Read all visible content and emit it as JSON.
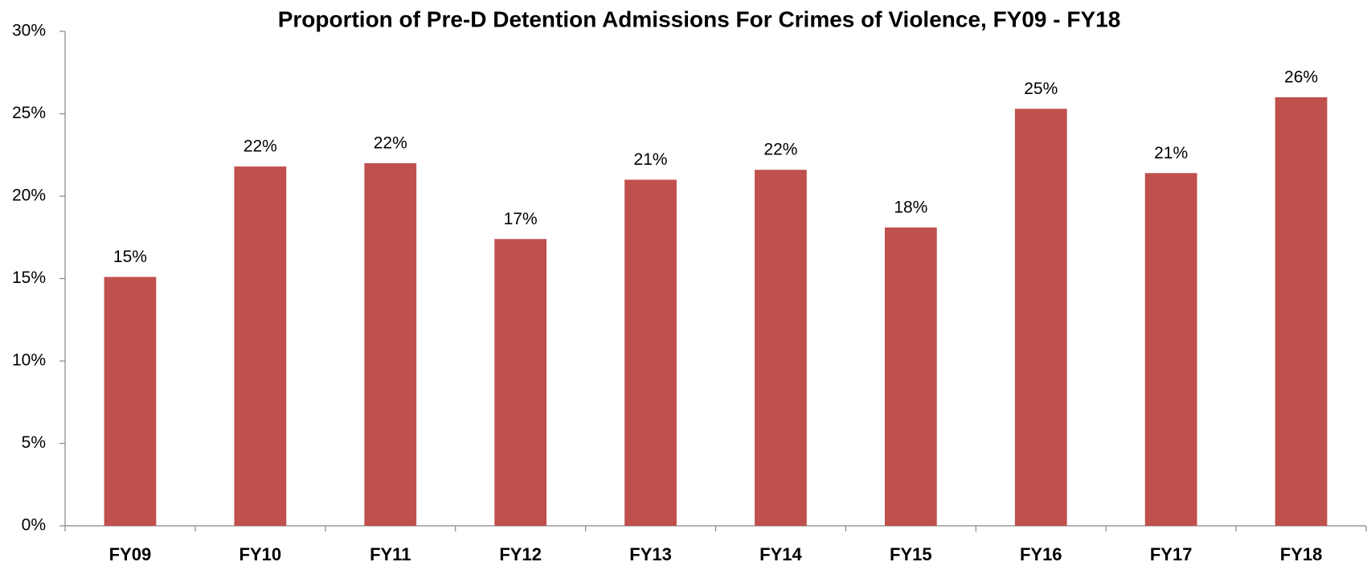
{
  "chart_data": {
    "type": "bar",
    "title": "Proportion of Pre-D Detention Admissions For Crimes of Violence, FY09 - FY18",
    "categories": [
      "FY09",
      "FY10",
      "FY11",
      "FY12",
      "FY13",
      "FY14",
      "FY15",
      "FY16",
      "FY17",
      "FY18"
    ],
    "values": [
      15.1,
      21.8,
      22.0,
      17.4,
      21.0,
      21.6,
      18.1,
      25.3,
      21.4,
      26.0
    ],
    "value_labels": [
      "15%",
      "22%",
      "22%",
      "17%",
      "21%",
      "22%",
      "18%",
      "25%",
      "21%",
      "26%"
    ],
    "color": "#c0504d",
    "ylim": [
      0,
      30
    ],
    "yticks": [
      {
        "value": 0,
        "label": "0%"
      },
      {
        "value": 5,
        "label": "5%"
      },
      {
        "value": 10,
        "label": "10%"
      },
      {
        "value": 15,
        "label": "15%"
      },
      {
        "value": 20,
        "label": "20%"
      },
      {
        "value": 25,
        "label": "25%"
      },
      {
        "value": 30,
        "label": "30%"
      }
    ],
    "grid": false
  }
}
